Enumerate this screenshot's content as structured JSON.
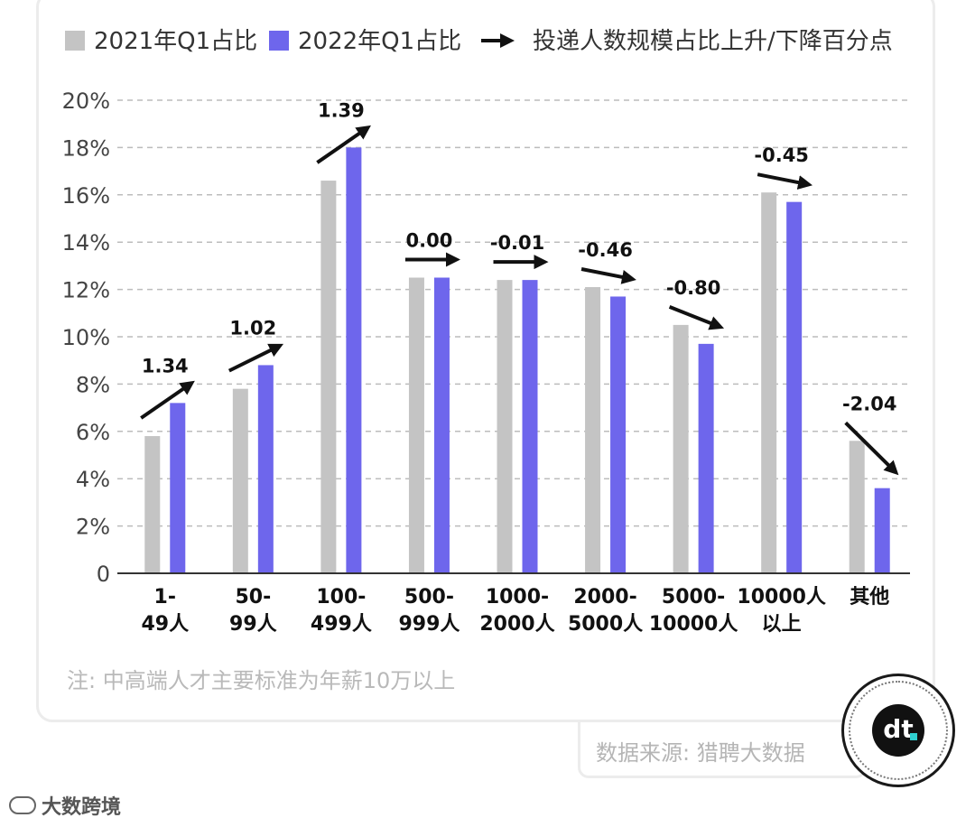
{
  "legend": {
    "series_2021": "2021年Q1占比",
    "series_2022": "2022年Q1占比",
    "arrow": "投递人数规模占比上升/下降百分点"
  },
  "colors": {
    "series_2021": "#c4c4c4",
    "series_2022": "#6e66ec",
    "grid": "#bcbcbc",
    "axis": "#333333"
  },
  "chart_data": {
    "type": "bar",
    "categories": [
      [
        "1-",
        "49人"
      ],
      [
        "50-",
        "99人"
      ],
      [
        "100-",
        "499人"
      ],
      [
        "500-",
        "999人"
      ],
      [
        "1000-",
        "2000人"
      ],
      [
        "2000-",
        "5000人"
      ],
      [
        "5000-",
        "10000人"
      ],
      [
        "10000人",
        "以上"
      ],
      [
        "其他"
      ]
    ],
    "series": [
      {
        "name": "2021年Q1占比",
        "values": [
          5.8,
          7.8,
          16.6,
          12.5,
          12.4,
          12.1,
          10.5,
          16.1,
          5.6
        ]
      },
      {
        "name": "2022年Q1占比",
        "values": [
          7.2,
          8.8,
          18.0,
          12.5,
          12.4,
          11.7,
          9.7,
          15.7,
          3.6
        ]
      }
    ],
    "change_labels": [
      "1.34",
      "1.02",
      "1.39",
      "0.00",
      "-0.01",
      "-0.46",
      "-0.80",
      "-0.45",
      "-2.04"
    ],
    "y_ticks": [
      "0",
      "2%",
      "4%",
      "6%",
      "8%",
      "10%",
      "12%",
      "14%",
      "16%",
      "18%",
      "20%"
    ],
    "ylim": [
      0,
      20
    ],
    "ylabel": "",
    "xlabel": ""
  },
  "note": "注: 中高端人才主要标准为年薪10万以上",
  "source": "数据来源: 猎聘大数据",
  "logo_text": "dt",
  "brand": "大数跨境"
}
